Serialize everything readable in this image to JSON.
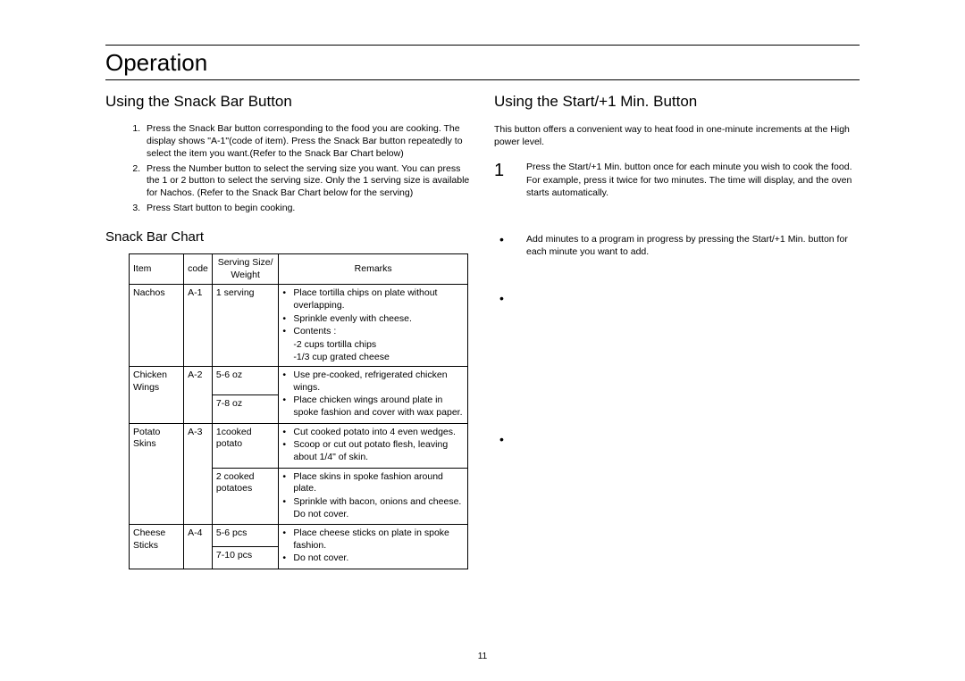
{
  "page": {
    "title": "Operation",
    "number": "11"
  },
  "left": {
    "heading": "Using the Snack Bar Button",
    "steps": [
      "Press the Snack Bar  button corresponding to the food you are cooking. The display shows \"A-1\"(code of item). Press the Snack Bar button repeatedly to select the item you want.(Refer to the Snack Bar Chart  below)",
      "Press the Number  button to select the serving size you want. You can press the 1 or 2 button to select the serving size. Only the 1 serving size is available for Nachos. (Refer to the Snack Bar Chart   below for the serving)",
      "Press Start  button to begin cooking."
    ],
    "chart_title": "Snack Bar Chart",
    "table": {
      "headers": [
        "Item",
        "code",
        "Serving Size/ Weight",
        "Remarks"
      ],
      "rows": [
        {
          "item": "Nachos",
          "code": "A-1",
          "sizes": [
            "1 serving"
          ],
          "remarks_groups": [
            [
              "Place tortilla chips on plate without overlapping.",
              "Sprinkle evenly with cheese.",
              "Contents :"
            ]
          ],
          "sub_lines": [
            "-2 cups tortilla chips",
            "-1/3 cup grated cheese"
          ]
        },
        {
          "item": "Chicken Wings",
          "code": "A-2",
          "sizes": [
            "5-6 oz",
            "7-8 oz"
          ],
          "remarks_groups": [
            [
              "Use pre-cooked, refrigerated chicken wings.",
              "Place chicken wings around plate in spoke fashion and cover with wax paper."
            ]
          ]
        },
        {
          "item": "Potato Skins",
          "code": "A-3",
          "sizes": [
            "1cooked potato",
            "2 cooked potatoes"
          ],
          "remarks_groups": [
            [
              "Cut cooked potato into 4 even wedges.",
              "Scoop or cut out potato flesh, leaving about 1/4\" of skin."
            ],
            [
              "Place skins in spoke fashion around plate.",
              "Sprinkle with bacon, onions and cheese. Do not cover."
            ]
          ]
        },
        {
          "item": "Cheese Sticks",
          "code": "A-4",
          "sizes": [
            "5-6 pcs",
            "7-10 pcs"
          ],
          "remarks_groups": [
            [
              "Place cheese sticks on plate in spoke fashion.",
              "Do not cover."
            ]
          ]
        }
      ]
    }
  },
  "right": {
    "heading": "Using the Start/+1 Min. Button",
    "intro": "This button offers a convenient way to heat food in one-minute increments at the High power level.",
    "step_num": "1",
    "step_text": "Press the Start/+1 Min.  button once for each minute you wish to cook the food. For example, press it twice for two minutes. The time will display, and the oven starts automatically.",
    "bullet_text": "Add minutes to a program in progress by pressing the Start/+1 Min.  button for each minute you want to add."
  }
}
